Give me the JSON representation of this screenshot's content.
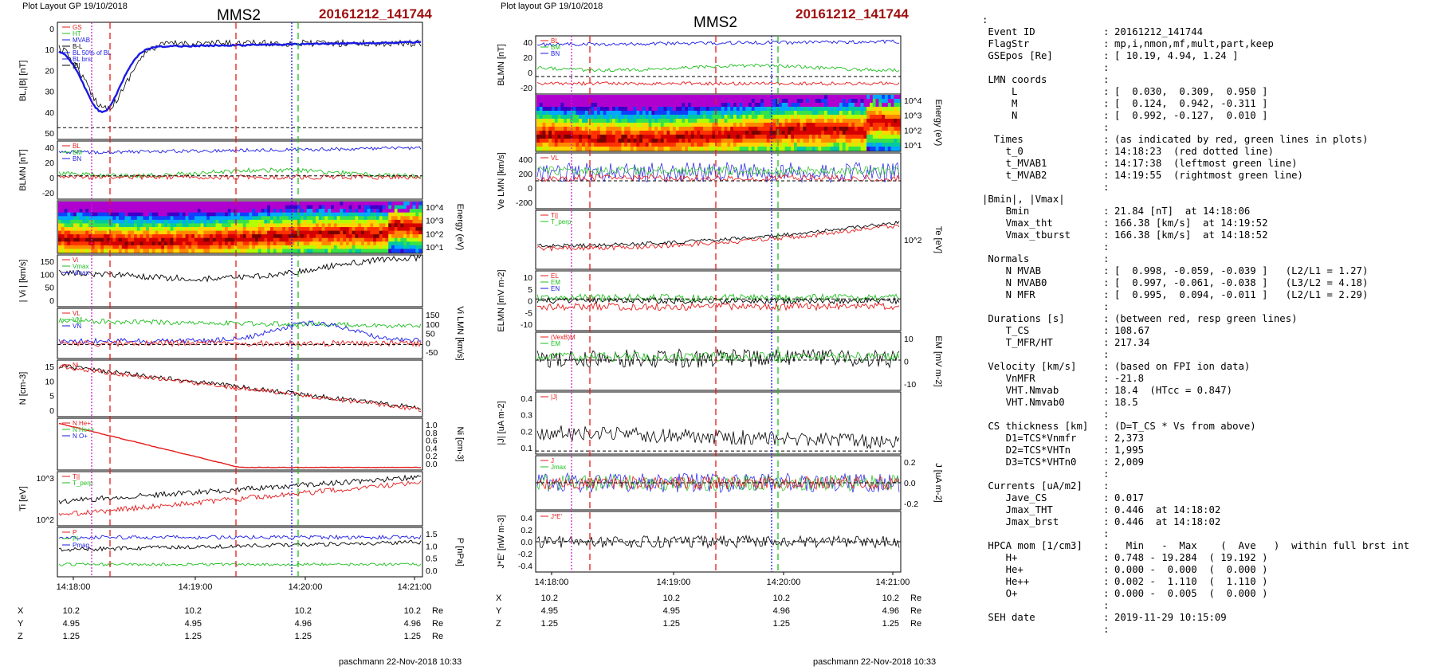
{
  "left": {
    "header": "Plot Layout GP 19/10/2018",
    "spacecraft": "MMS2",
    "event": "20161212_141744",
    "footer": "paschmann 22-Nov-2018 10:33",
    "time_labels": [
      "14:18:00",
      "14:19:00",
      "14:20:00",
      "14:21:00"
    ],
    "pos_rows": [
      {
        "name": "X",
        "values": [
          "10.2",
          "10.2",
          "10.2",
          "10.2"
        ],
        "unit": "Re"
      },
      {
        "name": "Y",
        "values": [
          "4.95",
          "4.95",
          "4.96",
          "4.96"
        ],
        "unit": "Re"
      },
      {
        "name": "Z",
        "values": [
          "1.25",
          "1.25",
          "1.25",
          "1.25"
        ],
        "unit": "Re"
      }
    ],
    "panels": [
      {
        "ylabel": "BL,|B| [nT]",
        "yticks": [
          "0",
          "10",
          "20",
          "30",
          "40",
          "50"
        ],
        "legend": [
          "GS",
          "HT",
          "MVAB",
          "B-L",
          "BL 50% of BL",
          "BL brst",
          "|B|"
        ]
      },
      {
        "ylabel": "BLMN [nT]",
        "yticks": [
          "40",
          "20",
          "0",
          "-20"
        ],
        "legend": [
          "BL",
          "BM",
          "BN"
        ]
      },
      {
        "ylabel": "Energy (eV)",
        "yticks": [
          "10^4",
          "10^3",
          "10^2",
          "10^1"
        ]
      },
      {
        "ylabel": "| Vi | [km/s]",
        "yticks": [
          "150",
          "100",
          "50",
          "0"
        ],
        "legend": [
          "Vi",
          "Vmax",
          "Vmax"
        ]
      },
      {
        "ylabel": "Vi LMN [km/s]",
        "yticks": [
          "150",
          "100",
          "50",
          "0",
          "-50"
        ],
        "legend": [
          "VL",
          "VM",
          "VN"
        ]
      },
      {
        "ylabel": "N [cm-3]",
        "yticks": [
          "15",
          "10",
          "5",
          "0"
        ],
        "legend": [
          "Ni"
        ]
      },
      {
        "ylabel": "Ni [cm-3]",
        "yticks": [
          "1.0",
          "0.8",
          "0.6",
          "0.4",
          "0.2",
          "0.0"
        ],
        "legend": [
          "N He+",
          "N He++",
          "N O+"
        ]
      },
      {
        "ylabel": "Ti [eV]",
        "yticks": [
          "10^3",
          "10^2"
        ],
        "legend": [
          "T||",
          "T_perp"
        ]
      },
      {
        "ylabel": "P [nPa]",
        "yticks": [
          "1.5",
          "1.0",
          "0.5",
          "0.0"
        ],
        "legend": [
          "P",
          "Pi",
          "Pmag"
        ]
      }
    ]
  },
  "middle": {
    "header": "Plot layout GP 19/10/2018",
    "spacecraft": "MMS2",
    "event": "20161212_141744",
    "footer": "paschmann 22-Nov-2018 10:33",
    "time_labels": [
      "14:18:00",
      "14:19:00",
      "14:20:00",
      "14:21:00"
    ],
    "pos_rows": [
      {
        "name": "X",
        "values": [
          "10.2",
          "10.2",
          "10.2",
          "10.2"
        ],
        "unit": "Re"
      },
      {
        "name": "Y",
        "values": [
          "4.95",
          "4.95",
          "4.96",
          "4.96"
        ],
        "unit": "Re"
      },
      {
        "name": "Z",
        "values": [
          "1.25",
          "1.25",
          "1.25",
          "1.25"
        ],
        "unit": "Re"
      }
    ],
    "panels": [
      {
        "ylabel": "BLMN [nT]",
        "yticks": [
          "40",
          "20",
          "0",
          "-20"
        ],
        "legend": [
          "BL",
          "BM",
          "BN"
        ]
      },
      {
        "ylabel": "Energy (eV)",
        "yticks": [
          "10^4",
          "10^3",
          "10^2",
          "10^1"
        ]
      },
      {
        "ylabel": "Ve LMN [km/s]",
        "yticks": [
          "400",
          "200",
          "0",
          "-200"
        ],
        "legend": [
          "VL"
        ]
      },
      {
        "ylabel": "Te [eV]",
        "yticks": [
          "10^2"
        ],
        "legend": [
          "T||",
          "T_perp"
        ]
      },
      {
        "ylabel": "ELMN [mV m-2]",
        "yticks": [
          "10",
          "5",
          "0",
          "-5",
          "-10"
        ],
        "legend": [
          "EL",
          "EM",
          "EN"
        ]
      },
      {
        "ylabel": "EM [mV m-2]",
        "yticks": [
          "10",
          "0",
          "-10"
        ],
        "legend": [
          "(VexB)M",
          "EM"
        ]
      },
      {
        "ylabel": "|J| [uA m-2]",
        "yticks": [
          "0.4",
          "0.3",
          "0.2",
          "0.1"
        ],
        "legend": [
          "|J|"
        ]
      },
      {
        "ylabel": "J [uA m-2]",
        "yticks": [
          "0.2",
          "0.0",
          "-0.2"
        ],
        "legend": [
          "J",
          "Jmax"
        ]
      },
      {
        "ylabel": "J*E' [nW m-3]",
        "yticks": [
          "0.4",
          "0.2",
          "0.0",
          "-0.2",
          "-0.4"
        ],
        "legend": [
          "J*E'"
        ]
      }
    ]
  },
  "summary": {
    "rows": [
      {
        "k": ":",
        "c": "",
        "v": ""
      },
      {
        "k": " Event ID",
        "c": ":",
        "v": "20161212_141744"
      },
      {
        "k": " FlagStr",
        "c": ":",
        "v": "mp,i,nmon,mf,mult,part,keep"
      },
      {
        "k": " GSEpos [Re]",
        "c": ":",
        "v": "[ 10.19, 4.94, 1.24 ]"
      },
      {
        "k": "",
        "c": ":",
        "v": ""
      },
      {
        "k": " LMN coords",
        "c": ":",
        "v": ""
      },
      {
        "k": "     L",
        "c": ":",
        "v": "[  0.030,  0.309,  0.950 ]"
      },
      {
        "k": "     M",
        "c": ":",
        "v": "[  0.124,  0.942, -0.311 ]"
      },
      {
        "k": "     N",
        "c": ":",
        "v": "[  0.992, -0.127,  0.010 ]"
      },
      {
        "k": "",
        "c": ":",
        "v": ""
      },
      {
        "k": "  Times",
        "c": ":",
        "v": "(as indicated by red, green lines in plots)"
      },
      {
        "k": "    t_0",
        "c": ":",
        "v": "14:18:23  (red dotted line)"
      },
      {
        "k": "    t_MVAB1",
        "c": ":",
        "v": "14:17:38  (leftmost green line)"
      },
      {
        "k": "    t_MVAB2",
        "c": ":",
        "v": "14:19:55  (rightmost green line)"
      },
      {
        "k": "",
        "c": ":",
        "v": ""
      },
      {
        "k": "|Bmin|, |Vmax|",
        "c": "",
        "v": ""
      },
      {
        "k": "    Bmin",
        "c": ":",
        "v": "21.84 [nT]  at 14:18:06"
      },
      {
        "k": "    Vmax_tht",
        "c": ":",
        "v": "166.38 [km/s]  at 14:19:52"
      },
      {
        "k": "    Vmax_tburst",
        "c": ":",
        "v": "166.38 [km/s]  at 14:18:52"
      },
      {
        "k": "",
        "c": ":",
        "v": ""
      },
      {
        "k": " Normals",
        "c": ":",
        "v": ""
      },
      {
        "k": "    N MVAB",
        "c": ":",
        "v": "[  0.998, -0.059, -0.039 ]   (L2/L1 = 1.27)"
      },
      {
        "k": "    N MVAB0",
        "c": ":",
        "v": "[  0.997, -0.061, -0.038 ]   (L3/L2 = 4.18)"
      },
      {
        "k": "    N MFR",
        "c": ":",
        "v": "[  0.995,  0.094, -0.011 ]   (L2/L1 = 2.29)"
      },
      {
        "k": "",
        "c": ":",
        "v": ""
      },
      {
        "k": " Durations [s]",
        "c": ":",
        "v": "(between red, resp green lines)"
      },
      {
        "k": "    T_CS",
        "c": ":",
        "v": "108.67"
      },
      {
        "k": "    T_MFR/HT",
        "c": ":",
        "v": "217.34"
      },
      {
        "k": "",
        "c": ":",
        "v": ""
      },
      {
        "k": " Velocity [km/s]",
        "c": ":",
        "v": "(based on FPI ion data)"
      },
      {
        "k": "    VnMFR",
        "c": ":",
        "v": "-21.8"
      },
      {
        "k": "    VHT.Nmvab",
        "c": ":",
        "v": "18.4  (HTcc = 0.847)"
      },
      {
        "k": "    VHT.Nmvab0",
        "c": ":",
        "v": "18.5"
      },
      {
        "k": "",
        "c": ":",
        "v": ""
      },
      {
        "k": " CS thickness [km]",
        "c": ":",
        "v": "(D=T_CS * Vs from above)"
      },
      {
        "k": "    D1=TCS*Vnmfr",
        "c": ":",
        "v": "2,373"
      },
      {
        "k": "    D2=TCS*VHTn",
        "c": ":",
        "v": "1,995"
      },
      {
        "k": "    D3=TCS*VHTn0",
        "c": ":",
        "v": "2,009"
      },
      {
        "k": "",
        "c": ":",
        "v": ""
      },
      {
        "k": " Currents [uA/m2]",
        "c": ":",
        "v": ""
      },
      {
        "k": "    Jave_CS",
        "c": ":",
        "v": "0.017"
      },
      {
        "k": "    Jmax_THT",
        "c": ":",
        "v": "0.446  at 14:18:02"
      },
      {
        "k": "    Jmax_brst",
        "c": ":",
        "v": "0.446  at 14:18:02"
      },
      {
        "k": "",
        "c": ":",
        "v": ""
      },
      {
        "k": " HPCA mom [1/cm3]",
        "c": ":",
        "v": "  Min   -  Max    (  Ave   )  within full brst int"
      },
      {
        "k": "    H+",
        "c": ":",
        "v": "0.748 - 19.284  ( 19.192 )"
      },
      {
        "k": "    He+",
        "c": ":",
        "v": "0.000 -  0.000  (  0.000 )"
      },
      {
        "k": "    He++",
        "c": ":",
        "v": "0.002 -  1.110  (  1.110 )"
      },
      {
        "k": "    O+",
        "c": ":",
        "v": "0.000 -  0.005  (  0.000 )"
      },
      {
        "k": "",
        "c": ":",
        "v": ""
      },
      {
        "k": " SEH date",
        "c": ":",
        "v": "2019-11-29 10:15:09"
      },
      {
        "k": "",
        "c": ":",
        "v": ""
      }
    ]
  },
  "colors": {
    "red": "#e41a1a",
    "green": "#1fbf1f",
    "blue": "#1a1ae4",
    "magenta": "#cc22cc",
    "black": "#000000",
    "title_red": "#a01010"
  }
}
